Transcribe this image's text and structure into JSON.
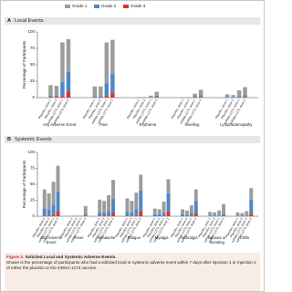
{
  "legend": [
    {
      "name": "Grade 1",
      "color": "#9c9c9c"
    },
    {
      "name": "Grade 2",
      "color": "#4f86c6"
    },
    {
      "name": "Grade 3",
      "color": "#d6392e"
    }
  ],
  "chart_data": [
    {
      "type": "stacked_bar",
      "panel": "A",
      "title": "Local Events",
      "ylabel": "Percentage of Participants",
      "groups": [
        "Any Adverse Event",
        "Pain",
        "Erythema",
        "Swelling",
        "Lymphadenopathy"
      ],
      "bar_labels": [
        "Placebo, dose 1",
        "Placebo, dose 2",
        "mRNA-1273, dose 1",
        "mRNA-1273, dose 2"
      ],
      "ylim": [
        0,
        100
      ],
      "yticks": [
        0,
        25,
        50,
        75,
        100
      ],
      "grid": false,
      "series": [
        {
          "values": [
            [
              16,
              15,
              60,
              50
            ],
            [
              15,
              15,
              62,
              52
            ],
            [
              1,
              1,
              2,
              6
            ],
            [
              1,
              1,
              4,
              8
            ],
            [
              4,
              3,
              9,
              12
            ]
          ]
        },
        {
          "values": [
            [
              2,
              2,
              22,
              30
            ],
            [
              2,
              2,
              20,
              29
            ],
            [
              0,
              0,
              1,
              2
            ],
            [
              0,
              0,
              1,
              3
            ],
            [
              1,
              1,
              2,
              3
            ]
          ]
        },
        {
          "values": [
            [
              1,
              1,
              2,
              9
            ],
            [
              0,
              0,
              2,
              7
            ],
            [
              0,
              0,
              0,
              1
            ],
            [
              0,
              0,
              1,
              1
            ],
            [
              0,
              0,
              0,
              1
            ]
          ]
        }
      ]
    },
    {
      "type": "stacked_bar",
      "panel": "B",
      "title": "Systemic Events",
      "ylabel": "Percentage of Participants",
      "groups": [
        "Any Adverse Event",
        "Fever",
        "Headache",
        "Fatigue",
        "Myalgia",
        "Arthralgia",
        "Nausea or Vomiting",
        "Chills"
      ],
      "bar_labels": [
        "Placebo, dose 1",
        "Placebo, dose 2",
        "mRNA-1273, dose 1",
        "mRNA-1273, dose 2"
      ],
      "ylim": [
        0,
        100
      ],
      "yticks": [
        0,
        25,
        50,
        75,
        100
      ],
      "grid": false,
      "series": [
        {
          "values": [
            [
              30,
              26,
              36,
              40
            ],
            [
              1,
              1,
              1,
              12
            ],
            [
              20,
              18,
              25,
              30
            ],
            [
              21,
              18,
              26,
              25
            ],
            [
              9,
              8,
              17,
              22
            ],
            [
              8,
              7,
              12,
              18
            ],
            [
              6,
              5,
              8,
              15
            ],
            [
              5,
              4,
              7,
              18
            ]
          ]
        },
        {
          "values": [
            [
              11,
              9,
              16,
              31
            ],
            [
              0,
              0,
              0,
              3
            ],
            [
              5,
              5,
              7,
              22
            ],
            [
              6,
              5,
              10,
              32
            ],
            [
              3,
              3,
              5,
              28
            ],
            [
              3,
              2,
              4,
              19
            ],
            [
              1,
              1,
              1,
              4
            ],
            [
              1,
              1,
              1,
              22
            ]
          ]
        },
        {
          "values": [
            [
              1,
              1,
              2,
              8
            ],
            [
              0,
              0,
              0,
              1
            ],
            [
              1,
              1,
              1,
              5
            ],
            [
              1,
              1,
              1,
              8
            ],
            [
              0,
              0,
              1,
              8
            ],
            [
              0,
              0,
              1,
              5
            ],
            [
              0,
              0,
              0,
              0
            ],
            [
              0,
              0,
              0,
              4
            ]
          ]
        }
      ]
    }
  ],
  "figure": {
    "label": "Figure 2.",
    "title": "Solicited Local and Systemic Adverse Events.",
    "text": "Shown is the percentage of participants who had a solicited local or systemic adverse event within 7 days after injection 1 or injection 2 of either the placebo or the mRNA-1273 vaccine."
  }
}
